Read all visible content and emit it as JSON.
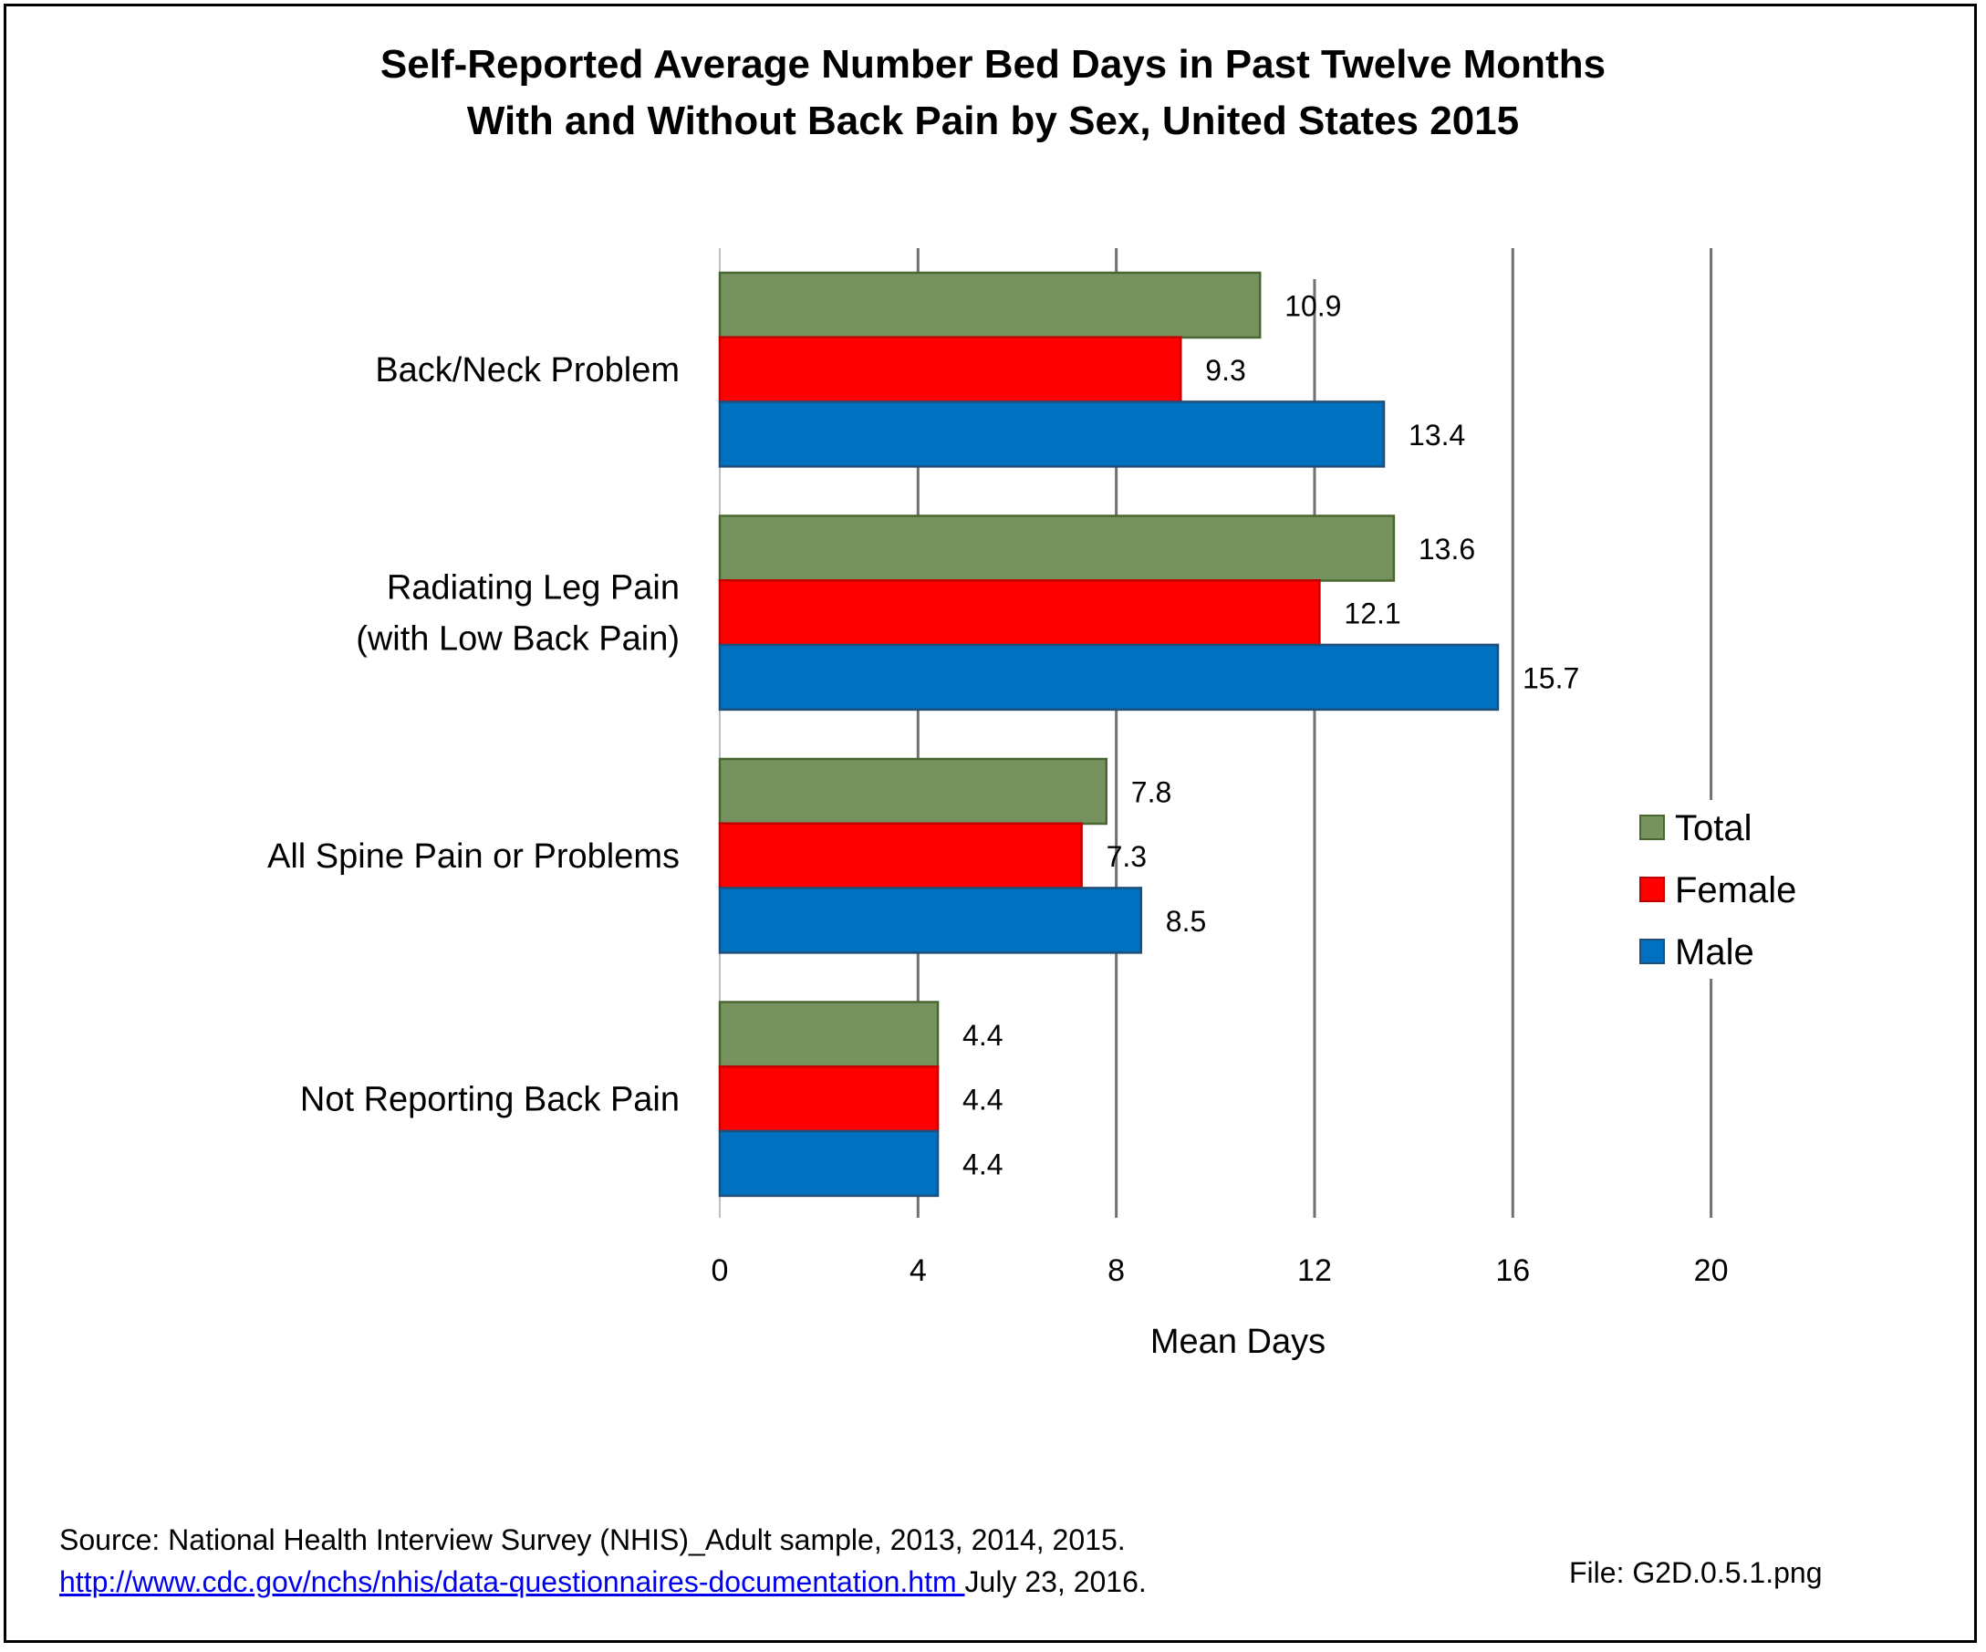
{
  "title_line1": "Self-Reported Average Number Bed Days in Past Twelve Months",
  "title_line2": "With and Without Back Pain by Sex, United States 2015",
  "footer": {
    "source": "Source: National Health Interview Survey (NHIS)_Adult sample, 2013, 2014, 2015.",
    "link": "http://www.cdc.gov/nchs/nhis/data-questionnaires-documentation.htm ",
    "date": "July 23, 2016.",
    "file": "File: G2D.0.5.1.png"
  },
  "chart_data": {
    "type": "bar",
    "orientation": "horizontal",
    "title": "Self-Reported Average Number Bed Days in Past Twelve Months With and Without Back Pain by Sex, United States 2015",
    "xlabel": "Mean Days",
    "ylabel": "",
    "xlim": [
      0,
      20
    ],
    "xticks": [
      0,
      4,
      8,
      12,
      16,
      20
    ],
    "grid": "vertical",
    "legend_position": "right",
    "categories": [
      [
        "Back/Neck Problem"
      ],
      [
        "Radiating Leg Pain",
        "(with Low Back Pain)"
      ],
      [
        "All Spine Pain or Problems"
      ],
      [
        "Not Reporting Back Pain"
      ]
    ],
    "series": [
      {
        "name": "Total",
        "color": "#76925f",
        "values": [
          10.9,
          13.6,
          7.8,
          4.4
        ]
      },
      {
        "name": "Female",
        "color": "#ff0000",
        "values": [
          9.3,
          12.1,
          7.3,
          4.4
        ]
      },
      {
        "name": "Male",
        "color": "#0070c0",
        "values": [
          13.4,
          15.7,
          8.5,
          4.4
        ]
      }
    ]
  }
}
